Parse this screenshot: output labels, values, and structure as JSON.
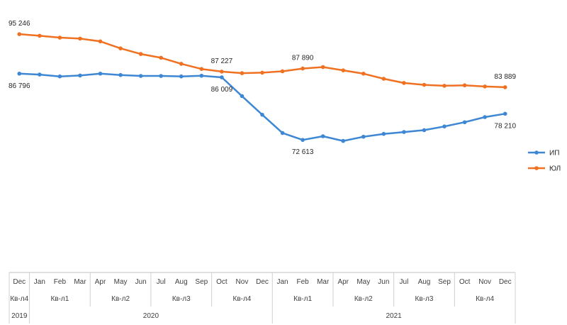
{
  "chart_data": {
    "type": "line",
    "x": [
      "Dec",
      "Jan",
      "Feb",
      "Mar",
      "Apr",
      "May",
      "Jun",
      "Jul",
      "Aug",
      "Sep",
      "Oct",
      "Nov",
      "Dec",
      "Jan",
      "Feb",
      "Mar",
      "Apr",
      "May",
      "Jun",
      "Jul",
      "Aug",
      "Sep",
      "Oct",
      "Nov",
      "Dec"
    ],
    "quarters": [
      {
        "label": "Кв-л4",
        "months": 1
      },
      {
        "label": "Кв-л1",
        "months": 3
      },
      {
        "label": "Кв-л2",
        "months": 3
      },
      {
        "label": "Кв-л3",
        "months": 3
      },
      {
        "label": "Кв-л4",
        "months": 3
      },
      {
        "label": "Кв-л1",
        "months": 3
      },
      {
        "label": "Кв-л2",
        "months": 3
      },
      {
        "label": "Кв-л3",
        "months": 3
      },
      {
        "label": "Кв-л4",
        "months": 3
      }
    ],
    "years": [
      {
        "label": "2019",
        "months": 1
      },
      {
        "label": "2020",
        "months": 12
      },
      {
        "label": "2021",
        "months": 12
      }
    ],
    "ylim": [
      57000,
      98000
    ],
    "grid": false,
    "legend_position": "right",
    "series": [
      {
        "name": "ИП",
        "color": "#3d87d4",
        "values": [
          86796,
          86600,
          86200,
          86400,
          86800,
          86500,
          86300,
          86300,
          86200,
          86350,
          86009,
          82000,
          78000,
          74100,
          72613,
          73400,
          72400,
          73300,
          73900,
          74300,
          74700,
          75500,
          76400,
          77500,
          78210
        ]
      },
      {
        "name": "ЮЛ",
        "color": "#f07122",
        "values": [
          95246,
          94900,
          94500,
          94300,
          93700,
          92200,
          91000,
          90200,
          88900,
          87800,
          87227,
          86900,
          87000,
          87300,
          87890,
          88200,
          87500,
          86800,
          85700,
          84800,
          84400,
          84200,
          84300,
          84050,
          83889
        ]
      }
    ],
    "annotations": [
      {
        "series": 1,
        "index": 0,
        "text": "95 246"
      },
      {
        "series": 0,
        "index": 0,
        "text": "86 796"
      },
      {
        "series": 1,
        "index": 10,
        "text": "87 227"
      },
      {
        "series": 0,
        "index": 10,
        "text": "86 009"
      },
      {
        "series": 1,
        "index": 14,
        "text": "87 890"
      },
      {
        "series": 0,
        "index": 14,
        "text": "72 613"
      },
      {
        "series": 1,
        "index": 24,
        "text": "83 889"
      },
      {
        "series": 0,
        "index": 24,
        "text": "78 210"
      }
    ]
  }
}
